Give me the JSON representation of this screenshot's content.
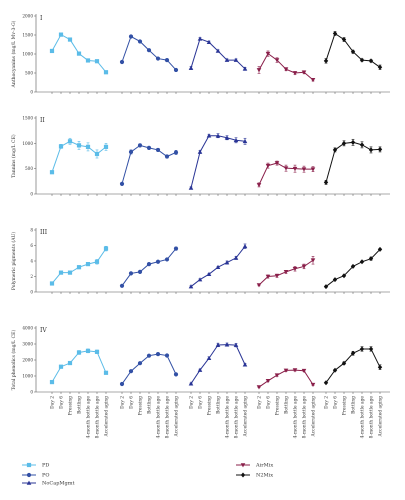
{
  "colors": {
    "PD": "#5bbce8",
    "PO": "#3250a5",
    "NoCapMgmt": "#2a3596",
    "AirMix": "#8a1f4a",
    "N2Mix": "#111111"
  },
  "categories": [
    "Day 2",
    "Day 6",
    "Pressing",
    "Bottling",
    "4-month bottle age",
    "8-month bottle age",
    "Accelerated aging"
  ],
  "legend": [
    {
      "key": "PD",
      "label": "PD",
      "marker": "square"
    },
    {
      "key": "PO",
      "label": "PO",
      "marker": "circle"
    },
    {
      "key": "NoCapMgmt",
      "label": "NoCapMgmt",
      "marker": "triangle"
    },
    {
      "key": "AirMix",
      "label": "AirMix",
      "marker": "tri-down"
    },
    {
      "key": "N2Mix",
      "label": "N2Mix",
      "marker": "diamond"
    }
  ],
  "chart_data": [
    {
      "panel": "I",
      "type": "line",
      "ylabel": "Anthocyanins (mg/L Mv-3-G)",
      "ylim": [
        0,
        2000
      ],
      "yticks": [
        0,
        500,
        1000,
        1500,
        2000
      ],
      "series": [
        {
          "name": "PD",
          "values": [
            1080,
            1510,
            1380,
            1010,
            830,
            810,
            520
          ],
          "err": [
            40,
            40,
            30,
            40,
            30,
            30,
            30
          ]
        },
        {
          "name": "PO",
          "values": [
            790,
            1460,
            1330,
            1100,
            880,
            840,
            580
          ],
          "err": [
            30,
            30,
            30,
            30,
            30,
            30,
            30
          ]
        },
        {
          "name": "NoCapMgmt",
          "values": [
            630,
            1400,
            1310,
            1080,
            840,
            840,
            610
          ],
          "err": [
            40,
            30,
            30,
            30,
            30,
            30,
            40
          ]
        },
        {
          "name": "AirMix",
          "values": [
            580,
            1010,
            840,
            600,
            500,
            520,
            320
          ],
          "err": [
            90,
            70,
            60,
            40,
            40,
            40,
            30
          ]
        },
        {
          "name": "N2Mix",
          "values": [
            820,
            1540,
            1380,
            1060,
            840,
            820,
            650
          ],
          "err": [
            60,
            50,
            50,
            40,
            30,
            30,
            60
          ]
        }
      ]
    },
    {
      "panel": "II",
      "type": "line",
      "ylabel": "Tannins (mg/L CE)",
      "ylim": [
        0,
        1500
      ],
      "yticks": [
        0,
        500,
        1000,
        1500
      ],
      "series": [
        {
          "name": "PD",
          "values": [
            430,
            940,
            1040,
            960,
            930,
            790,
            930
          ],
          "err": [
            30,
            40,
            60,
            80,
            80,
            80,
            70
          ]
        },
        {
          "name": "PO",
          "values": [
            200,
            830,
            960,
            910,
            870,
            740,
            820
          ],
          "err": [
            20,
            40,
            30,
            30,
            30,
            30,
            40
          ]
        },
        {
          "name": "NoCapMgmt",
          "values": [
            120,
            830,
            1150,
            1150,
            1110,
            1060,
            1040
          ],
          "err": [
            20,
            30,
            30,
            40,
            40,
            50,
            60
          ]
        },
        {
          "name": "AirMix",
          "values": [
            180,
            560,
            610,
            510,
            500,
            490,
            490
          ],
          "err": [
            40,
            50,
            40,
            60,
            70,
            60,
            50
          ]
        },
        {
          "name": "N2Mix",
          "values": [
            230,
            870,
            1000,
            1020,
            970,
            870,
            880
          ],
          "err": [
            40,
            40,
            50,
            60,
            60,
            60,
            50
          ]
        }
      ]
    },
    {
      "panel": "III",
      "type": "line",
      "ylabel": "Polymeric pigments (AU)",
      "ylim": [
        0,
        8
      ],
      "yticks": [
        0,
        2,
        4,
        6,
        8
      ],
      "series": [
        {
          "name": "PD",
          "values": [
            1.1,
            2.5,
            2.5,
            3.2,
            3.6,
            3.9,
            5.6
          ],
          "err": [
            0.1,
            0.1,
            0.1,
            0.2,
            0.2,
            0.3,
            0.3
          ]
        },
        {
          "name": "PO",
          "values": [
            0.8,
            2.4,
            2.6,
            3.6,
            3.9,
            4.2,
            5.6
          ],
          "err": [
            0.1,
            0.1,
            0.1,
            0.1,
            0.1,
            0.1,
            0.2
          ]
        },
        {
          "name": "NoCapMgmt",
          "values": [
            0.7,
            1.6,
            2.3,
            3.2,
            3.8,
            4.4,
            5.9
          ],
          "err": [
            0.1,
            0.1,
            0.1,
            0.1,
            0.2,
            0.2,
            0.3
          ]
        },
        {
          "name": "AirMix",
          "values": [
            0.9,
            2.0,
            2.1,
            2.6,
            3.0,
            3.3,
            4.1
          ],
          "err": [
            0.1,
            0.2,
            0.2,
            0.2,
            0.3,
            0.3,
            0.5
          ]
        },
        {
          "name": "N2Mix",
          "values": [
            0.7,
            1.6,
            2.1,
            3.3,
            3.9,
            4.3,
            5.5
          ],
          "err": [
            0.1,
            0.1,
            0.1,
            0.1,
            0.1,
            0.2,
            0.1
          ]
        }
      ]
    },
    {
      "panel": "IV",
      "type": "line",
      "ylabel": "Total phenolics (mg/L CE)",
      "ylim": [
        0,
        4000
      ],
      "yticks": [
        0,
        1000,
        2000,
        3000,
        4000
      ],
      "series": [
        {
          "name": "PD",
          "values": [
            620,
            1580,
            1810,
            2470,
            2570,
            2510,
            1200
          ],
          "err": [
            40,
            60,
            80,
            120,
            120,
            110,
            80
          ]
        },
        {
          "name": "PO",
          "values": [
            500,
            1300,
            1800,
            2270,
            2370,
            2280,
            1100
          ],
          "err": [
            40,
            50,
            60,
            60,
            70,
            70,
            60
          ]
        },
        {
          "name": "NoCapMgmt",
          "values": [
            520,
            1370,
            2110,
            2940,
            2960,
            2930,
            1710
          ],
          "err": [
            40,
            60,
            90,
            110,
            100,
            110,
            80
          ]
        },
        {
          "name": "AirMix",
          "values": [
            310,
            700,
            1050,
            1350,
            1370,
            1330,
            460
          ],
          "err": [
            40,
            60,
            70,
            70,
            60,
            60,
            50
          ]
        },
        {
          "name": "N2Mix",
          "values": [
            580,
            1360,
            1800,
            2420,
            2690,
            2690,
            1550
          ],
          "err": [
            40,
            60,
            80,
            120,
            140,
            140,
            150
          ]
        }
      ]
    }
  ]
}
